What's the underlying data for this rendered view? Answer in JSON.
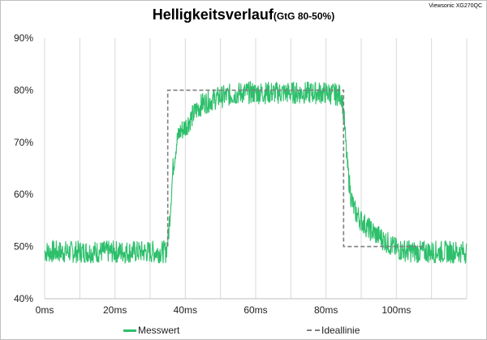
{
  "header": {
    "title": "Helligkeitsverlauf",
    "subtitle": "(GtG 80-50%)",
    "model": "Viewsonic XG270QC"
  },
  "colors": {
    "measured": "#2dbf6b",
    "ideal": "#7f7f7f",
    "grid": "#d9d9d9",
    "frame": "#bfbfbf"
  },
  "chart_data": {
    "type": "line",
    "title": "Helligkeitsverlauf (GtG 80-50%)",
    "xlabel": "",
    "ylabel": "",
    "xlim": [
      0,
      120
    ],
    "ylim": [
      40,
      90
    ],
    "x_ticks": [
      0,
      20,
      40,
      60,
      80,
      100
    ],
    "x_tick_labels": [
      "0ms",
      "20ms",
      "40ms",
      "60ms",
      "80ms",
      "100ms"
    ],
    "y_ticks": [
      40,
      50,
      60,
      70,
      80,
      90
    ],
    "y_tick_labels": [
      "40%",
      "50%",
      "60%",
      "70%",
      "80%",
      "90%"
    ],
    "grid": "vertical",
    "legend_position": "bottom",
    "series": [
      {
        "name": "Messwert",
        "color": "#2dbf6b",
        "style": "solid-noisy",
        "noise_band": 2.2,
        "x": [
          0,
          34.5,
          35.2,
          36.5,
          37.5,
          38.5,
          40,
          42,
          43.5,
          45,
          47,
          49,
          52,
          56,
          60,
          65,
          70,
          75,
          80,
          84.5,
          85.2,
          86,
          87,
          88,
          90,
          92,
          95,
          98,
          100,
          105,
          110,
          120
        ],
        "y": [
          49,
          49,
          52,
          65,
          70,
          72,
          73,
          75,
          76.5,
          77.5,
          78,
          78.5,
          79,
          79.5,
          79.5,
          79.5,
          79.5,
          79.5,
          79.5,
          79,
          74,
          66,
          60,
          57,
          55,
          53.5,
          52,
          50.5,
          49.5,
          49,
          49,
          49
        ]
      },
      {
        "name": "Ideallinie",
        "color": "#7f7f7f",
        "style": "dashed",
        "x": [
          35,
          35,
          85,
          85,
          108
        ],
        "y": [
          50,
          80,
          80,
          50,
          50
        ]
      }
    ]
  },
  "legend": {
    "items": [
      {
        "label": "Messwert",
        "style": "solid"
      },
      {
        "label": "Ideallinie",
        "style": "dashed"
      }
    ]
  }
}
